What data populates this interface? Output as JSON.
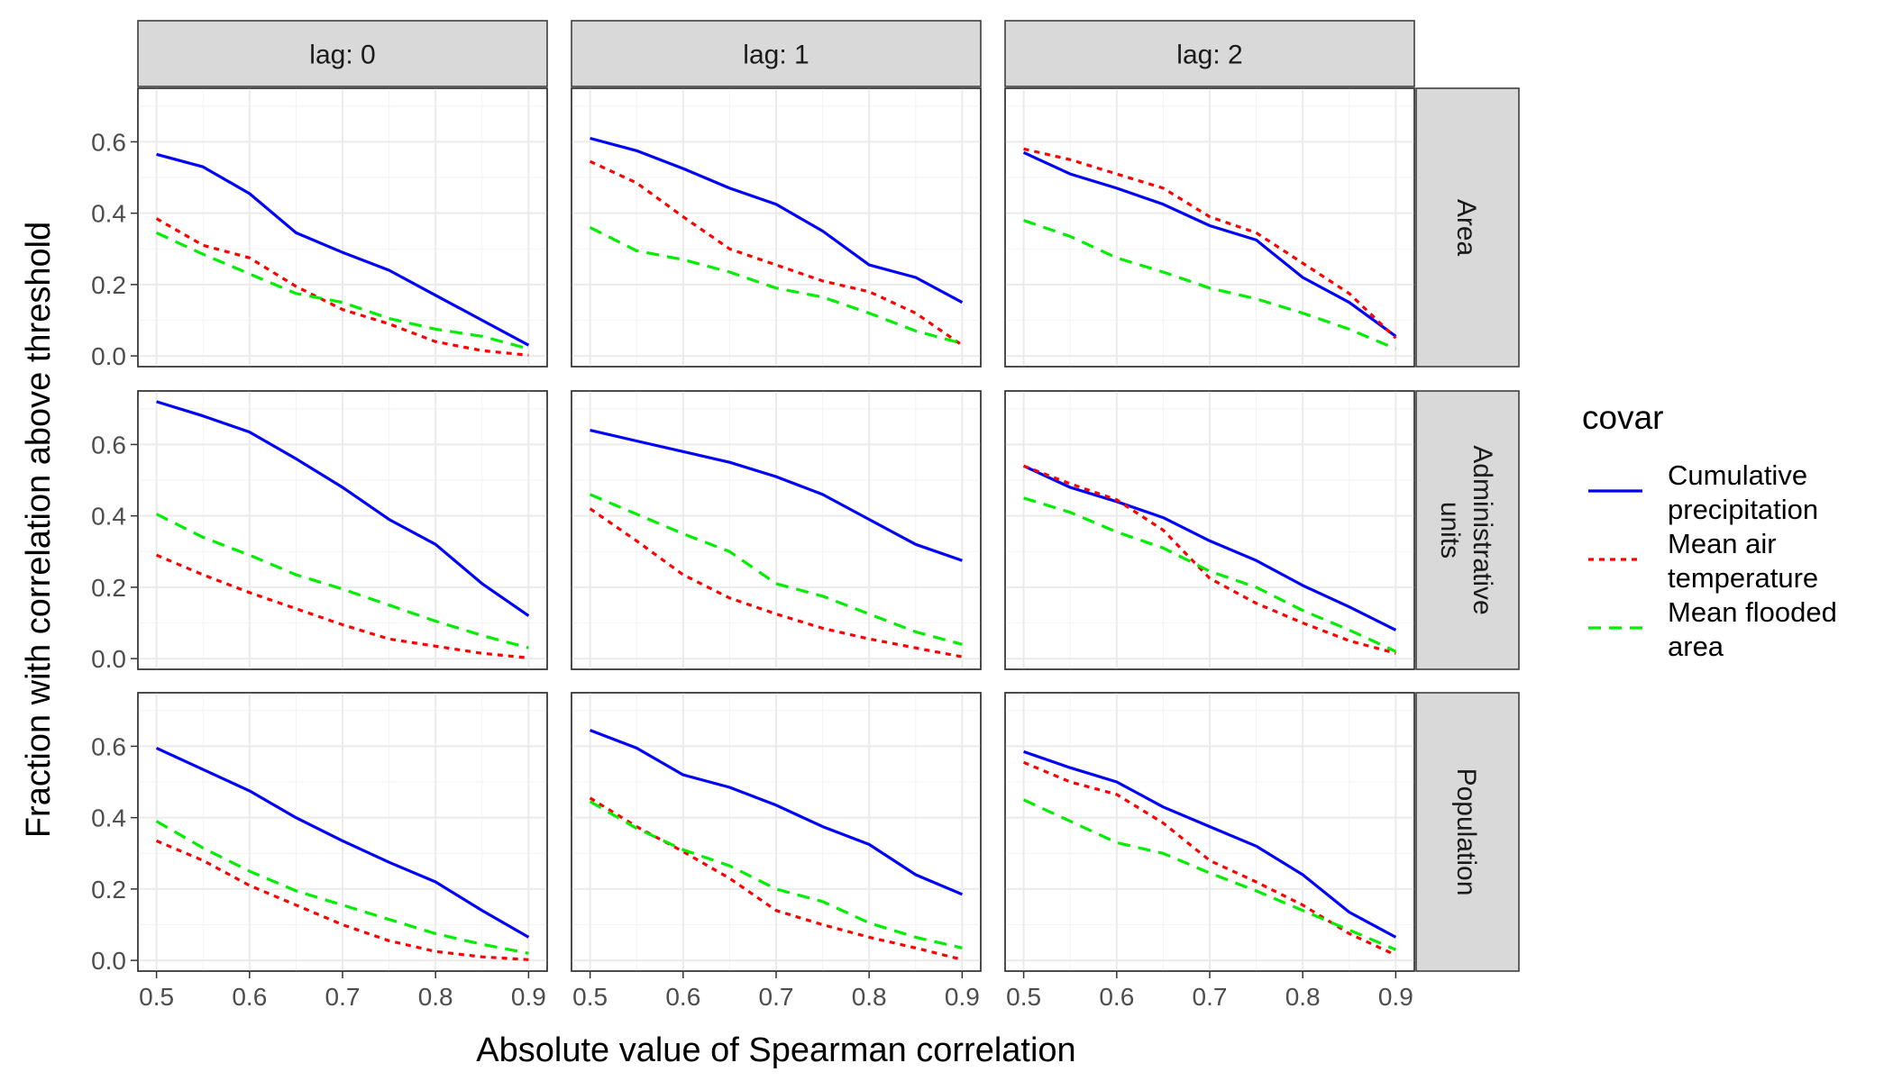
{
  "chart_data": {
    "type": "line",
    "xlabel": "Absolute value of Spearman correlation",
    "ylabel": "Fraction with correlation above threshold",
    "x": [
      0.5,
      0.55,
      0.6,
      0.65,
      0.7,
      0.75,
      0.8,
      0.85,
      0.9
    ],
    "xticks": [
      "0.5",
      "0.6",
      "0.7",
      "0.8",
      "0.9"
    ],
    "yticks": [
      "0.0",
      "0.2",
      "0.4",
      "0.6"
    ],
    "xlim": [
      0.48,
      0.92
    ],
    "ylim": [
      -0.03,
      0.75
    ],
    "grid": true,
    "facet_columns": [
      "lag: 0",
      "lag: 1",
      "lag: 2"
    ],
    "facet_rows": [
      "Area",
      "Administrative\nunits",
      "Population"
    ],
    "legend": {
      "title": "covar",
      "position": "right",
      "items": [
        {
          "key": "cp",
          "label": "Cumulative\nprecipitation",
          "color": "#0000ff",
          "dash": "solid"
        },
        {
          "key": "mt",
          "label": "Mean air\ntemperature",
          "color": "#ff0000",
          "dash": "dotted"
        },
        {
          "key": "fa",
          "label": "Mean flooded\narea",
          "color": "#00ee00",
          "dash": "dashed"
        }
      ]
    },
    "panels": [
      {
        "row": 0,
        "col": 0,
        "series": [
          {
            "key": "cp",
            "values": [
              0.565,
              0.53,
              0.455,
              0.345,
              0.29,
              0.24,
              0.17,
              0.1,
              0.03
            ]
          },
          {
            "key": "mt",
            "values": [
              0.385,
              0.31,
              0.275,
              0.195,
              0.13,
              0.09,
              0.04,
              0.015,
              0.002
            ]
          },
          {
            "key": "fa",
            "values": [
              0.345,
              0.285,
              0.23,
              0.175,
              0.15,
              0.105,
              0.075,
              0.055,
              0.02
            ]
          }
        ]
      },
      {
        "row": 0,
        "col": 1,
        "series": [
          {
            "key": "cp",
            "values": [
              0.61,
              0.575,
              0.525,
              0.47,
              0.425,
              0.35,
              0.255,
              0.22,
              0.15
            ]
          },
          {
            "key": "mt",
            "values": [
              0.545,
              0.485,
              0.39,
              0.3,
              0.255,
              0.21,
              0.18,
              0.12,
              0.03
            ]
          },
          {
            "key": "fa",
            "values": [
              0.36,
              0.295,
              0.27,
              0.235,
              0.19,
              0.165,
              0.12,
              0.07,
              0.035
            ]
          }
        ]
      },
      {
        "row": 0,
        "col": 2,
        "series": [
          {
            "key": "cp",
            "values": [
              0.57,
              0.51,
              0.47,
              0.425,
              0.365,
              0.325,
              0.22,
              0.15,
              0.055
            ]
          },
          {
            "key": "mt",
            "values": [
              0.58,
              0.55,
              0.51,
              0.47,
              0.39,
              0.345,
              0.26,
              0.175,
              0.05
            ]
          },
          {
            "key": "fa",
            "values": [
              0.38,
              0.335,
              0.275,
              0.235,
              0.19,
              0.16,
              0.12,
              0.075,
              0.02
            ]
          }
        ]
      },
      {
        "row": 1,
        "col": 0,
        "series": [
          {
            "key": "cp",
            "values": [
              0.72,
              0.68,
              0.635,
              0.56,
              0.48,
              0.39,
              0.32,
              0.21,
              0.12
            ]
          },
          {
            "key": "mt",
            "values": [
              0.29,
              0.235,
              0.185,
              0.14,
              0.095,
              0.055,
              0.035,
              0.015,
              0.002
            ]
          },
          {
            "key": "fa",
            "values": [
              0.405,
              0.34,
              0.29,
              0.235,
              0.195,
              0.15,
              0.105,
              0.065,
              0.03
            ]
          }
        ]
      },
      {
        "row": 1,
        "col": 1,
        "series": [
          {
            "key": "cp",
            "values": [
              0.64,
              0.61,
              0.58,
              0.55,
              0.51,
              0.46,
              0.39,
              0.32,
              0.275
            ]
          },
          {
            "key": "mt",
            "values": [
              0.42,
              0.33,
              0.235,
              0.17,
              0.125,
              0.085,
              0.055,
              0.03,
              0.005
            ]
          },
          {
            "key": "fa",
            "values": [
              0.46,
              0.405,
              0.35,
              0.3,
              0.21,
              0.175,
              0.125,
              0.075,
              0.04
            ]
          }
        ]
      },
      {
        "row": 1,
        "col": 2,
        "series": [
          {
            "key": "cp",
            "values": [
              0.54,
              0.48,
              0.44,
              0.395,
              0.33,
              0.275,
              0.205,
              0.145,
              0.08
            ]
          },
          {
            "key": "mt",
            "values": [
              0.54,
              0.49,
              0.445,
              0.36,
              0.225,
              0.155,
              0.1,
              0.05,
              0.015
            ]
          },
          {
            "key": "fa",
            "values": [
              0.45,
              0.41,
              0.355,
              0.31,
              0.245,
              0.2,
              0.135,
              0.08,
              0.02
            ]
          }
        ]
      },
      {
        "row": 2,
        "col": 0,
        "series": [
          {
            "key": "cp",
            "values": [
              0.595,
              0.535,
              0.475,
              0.4,
              0.335,
              0.275,
              0.22,
              0.14,
              0.065
            ]
          },
          {
            "key": "mt",
            "values": [
              0.335,
              0.28,
              0.21,
              0.155,
              0.1,
              0.055,
              0.025,
              0.01,
              0.002
            ]
          },
          {
            "key": "fa",
            "values": [
              0.39,
              0.315,
              0.25,
              0.195,
              0.155,
              0.115,
              0.075,
              0.045,
              0.02
            ]
          }
        ]
      },
      {
        "row": 2,
        "col": 1,
        "series": [
          {
            "key": "cp",
            "values": [
              0.645,
              0.595,
              0.52,
              0.485,
              0.435,
              0.375,
              0.325,
              0.24,
              0.185
            ]
          },
          {
            "key": "mt",
            "values": [
              0.455,
              0.375,
              0.305,
              0.23,
              0.14,
              0.1,
              0.065,
              0.035,
              0.002
            ]
          },
          {
            "key": "fa",
            "values": [
              0.445,
              0.37,
              0.31,
              0.265,
              0.2,
              0.165,
              0.105,
              0.065,
              0.035
            ]
          }
        ]
      },
      {
        "row": 2,
        "col": 2,
        "series": [
          {
            "key": "cp",
            "values": [
              0.585,
              0.54,
              0.5,
              0.43,
              0.375,
              0.32,
              0.24,
              0.135,
              0.065
            ]
          },
          {
            "key": "mt",
            "values": [
              0.555,
              0.5,
              0.465,
              0.385,
              0.28,
              0.22,
              0.155,
              0.075,
              0.015
            ]
          },
          {
            "key": "fa",
            "values": [
              0.45,
              0.39,
              0.33,
              0.3,
              0.245,
              0.195,
              0.14,
              0.085,
              0.03
            ]
          }
        ]
      }
    ]
  }
}
